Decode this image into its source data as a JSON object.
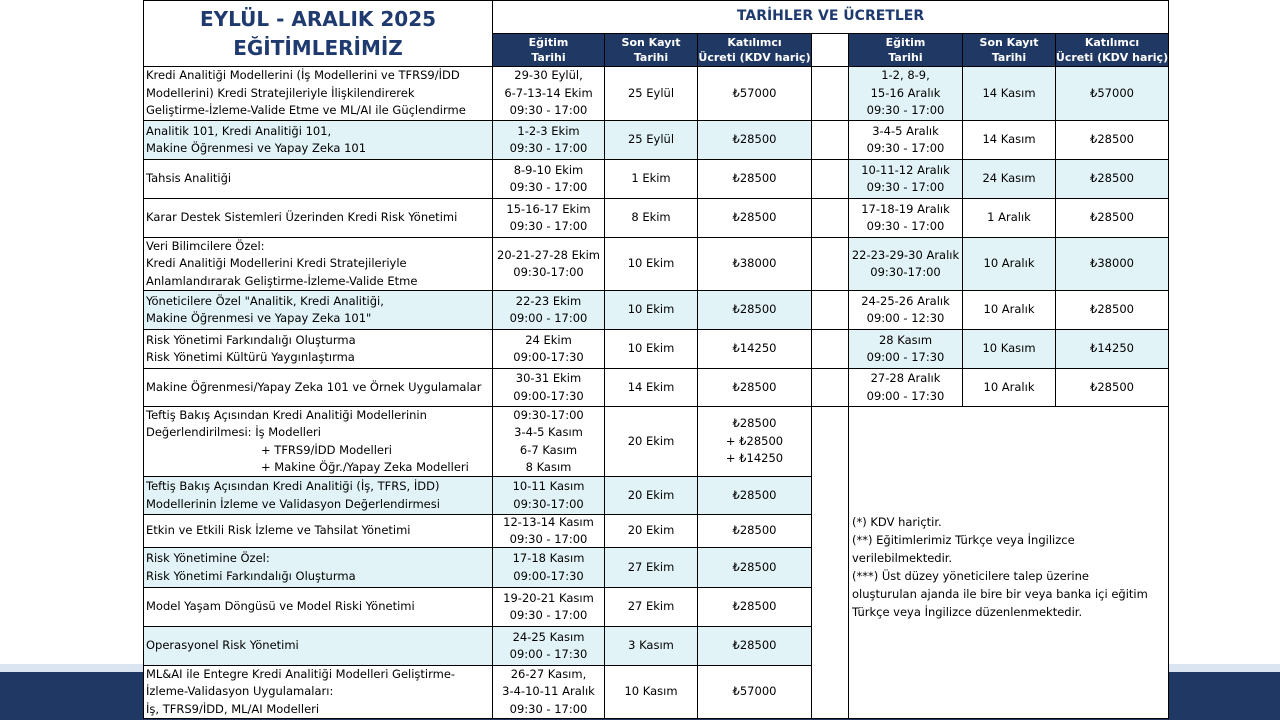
{
  "header": {
    "title": [
      "EYLÜL - ARALIK 2025",
      "EĞİTİMLERİMİZ"
    ],
    "subtitle": "TARİHLER VE ÜCRETLER",
    "columns": [
      [
        "Eğitim",
        "Tarihi"
      ],
      [
        "Son Kayıt",
        "Tarihi"
      ],
      [
        "Katılımcı",
        "Ücreti (KDV hariç)"
      ]
    ]
  },
  "rows": [
    {
      "course": [
        "Kredi Analitiği Modellerini (İş Modellerini ve TFRS9/İDD",
        "Modellerini) Kredi Stratejileriyle İlişkilendirerek",
        "Geliştirme-İzleme-Valide Etme ve ML/AI ile Güçlendirme"
      ],
      "session1": {
        "dates": [
          "29-30 Eylül,",
          "6-7-13-14 Ekim",
          "09:30 - 17:00"
        ],
        "last": "25 Eylül",
        "fee": [
          "₺57000"
        ]
      },
      "session2": {
        "dates": [
          "1-2, 8-9,",
          "15-16 Aralık",
          "09:30 - 17:00"
        ],
        "last": "14 Kasım",
        "fee": [
          "₺57000"
        ]
      }
    },
    {
      "course": [
        "Analitik 101, Kredi Analitiği 101,",
        "Makine Öğrenmesi ve Yapay Zeka 101"
      ],
      "session1": {
        "dates": [
          "1-2-3 Ekim",
          "09:30 - 17:00"
        ],
        "last": "25 Eylül",
        "fee": [
          "₺28500"
        ]
      },
      "session2": {
        "dates": [
          "3-4-5 Aralık",
          "09:30 - 17:00"
        ],
        "last": "14 Kasım",
        "fee": [
          "₺28500"
        ]
      }
    },
    {
      "course": [
        "Tahsis Analitiği"
      ],
      "session1": {
        "dates": [
          "8-9-10 Ekim",
          "09:30 - 17:00"
        ],
        "last": "1 Ekim",
        "fee": [
          "₺28500"
        ]
      },
      "session2": {
        "dates": [
          "10-11-12 Aralık",
          "09:30 - 17:00"
        ],
        "last": "24 Kasım",
        "fee": [
          "₺28500"
        ]
      }
    },
    {
      "course": [
        "Karar Destek Sistemleri Üzerinden Kredi Risk Yönetimi"
      ],
      "session1": {
        "dates": [
          "15-16-17 Ekim",
          "09:30 - 17:00"
        ],
        "last": "8 Ekim",
        "fee": [
          "₺28500"
        ]
      },
      "session2": {
        "dates": [
          "17-18-19 Aralık",
          "09:30 - 17:00"
        ],
        "last": "1 Aralık",
        "fee": [
          "₺28500"
        ]
      }
    },
    {
      "course": [
        "Veri Bilimcilere Özel:",
        "Kredi Analitiği Modellerini Kredi Stratejileriyle",
        "Anlamlandırarak Geliştirme-İzleme-Valide Etme"
      ],
      "session1": {
        "dates": [
          "20-21-27-28 Ekim",
          "09:30-17:00"
        ],
        "last": "10 Ekim",
        "fee": [
          "₺38000"
        ]
      },
      "session2": {
        "dates": [
          "22-23-29-30 Aralık",
          "09:30-17:00"
        ],
        "last": "10 Aralık",
        "fee": [
          "₺38000"
        ]
      }
    },
    {
      "course": [
        "Yöneticilere Özel \"Analitik, Kredi Analitiği,",
        "Makine Öğrenmesi ve Yapay Zeka 101\""
      ],
      "session1": {
        "dates": [
          "22-23 Ekim",
          "09:00 - 17:00"
        ],
        "last": "10 Ekim",
        "fee": [
          "₺28500"
        ]
      },
      "session2": {
        "dates": [
          "24-25-26 Aralık",
          "09:00 - 12:30"
        ],
        "last": "10 Aralık",
        "fee": [
          "₺28500"
        ]
      }
    },
    {
      "course": [
        "Risk Yönetimi Farkındalığı Oluşturma",
        "Risk Yönetimi Kültürü Yaygınlaştırma"
      ],
      "session1": {
        "dates": [
          "24 Ekim",
          "09:00-17:30"
        ],
        "last": "10 Ekim",
        "fee": [
          "₺14250"
        ]
      },
      "session2": {
        "dates": [
          "28 Kasım",
          "09:00 - 17:30"
        ],
        "last": "10 Kasım",
        "fee": [
          "₺14250"
        ]
      }
    },
    {
      "course": [
        "Makine Öğrenmesi/Yapay Zeka 101 ve Örnek Uygulamalar"
      ],
      "session1": {
        "dates": [
          "30-31 Ekim",
          "09:00-17:30"
        ],
        "last": "14 Ekim",
        "fee": [
          "₺28500"
        ]
      },
      "session2": {
        "dates": [
          "27-28 Aralık",
          "09:00 - 17:30"
        ],
        "last": "10 Aralık",
        "fee": [
          "₺28500"
        ]
      }
    },
    {
      "course": [
        "Teftiş Bakış Açısından Kredi Analitiği Modellerinin",
        "Değerlendirilmesi:  İş Modelleri",
        "+ TFRS9/İDD Modelleri",
        "+ Makine Öğr./Yapay Zeka Modelleri"
      ],
      "session1": {
        "dates": [
          "09:30-17:00",
          "3-4-5 Kasım",
          "6-7 Kasım",
          "8 Kasım"
        ],
        "last": "20 Ekim",
        "fee": [
          "₺28500",
          "+ ₺28500",
          "+ ₺14250"
        ]
      }
    },
    {
      "course": [
        "Teftiş Bakış Açısından Kredi Analitiği (İş, TFRS, İDD)",
        "Modellerinin İzleme ve Validasyon Değerlendirmesi"
      ],
      "session1": {
        "dates": [
          "10-11 Kasım",
          "09:30-17:00"
        ],
        "last": "20 Ekim",
        "fee": [
          "₺28500"
        ]
      }
    },
    {
      "course": [
        "Etkin ve Etkili Risk İzleme ve Tahsilat Yönetimi"
      ],
      "session1": {
        "dates": [
          "12-13-14 Kasım",
          "09:30 - 17:00"
        ],
        "last": "20 Ekim",
        "fee": [
          "₺28500"
        ]
      }
    },
    {
      "course": [
        "Risk Yönetimine Özel:",
        "Risk Yönetimi Farkındalığı Oluşturma"
      ],
      "session1": {
        "dates": [
          "17-18 Kasım",
          "09:00-17:30"
        ],
        "last": "27 Ekim",
        "fee": [
          "₺28500"
        ]
      }
    },
    {
      "course": [
        "Model Yaşam Döngüsü ve Model Riski Yönetimi"
      ],
      "session1": {
        "dates": [
          "19-20-21 Kasım",
          "09:30 - 17:00"
        ],
        "last": "27 Ekim",
        "fee": [
          "₺28500"
        ]
      }
    },
    {
      "course": [
        "Operasyonel Risk Yönetimi"
      ],
      "session1": {
        "dates": [
          "24-25 Kasım",
          "09:00 - 17:30"
        ],
        "last": "3 Kasım",
        "fee": [
          "₺28500"
        ]
      }
    },
    {
      "course": [
        "ML&AI ile Entegre Kredi Analitiği Modelleri Geliştirme-",
        "İzleme-Validasyon Uygulamaları:",
        "İş, TFRS9/İDD, ML/AI Modelleri"
      ],
      "session1": {
        "dates": [
          "26-27 Kasım,",
          "3-4-10-11 Aralık",
          "09:30 - 17:00"
        ],
        "last": "10 Kasım",
        "fee": [
          "₺57000"
        ]
      }
    }
  ],
  "notes": [
    "(*) KDV hariçtir.",
    "(**) Eğitimlerimiz Türkçe veya İngilizce",
    "verilebilmektedir.",
    "(***) Üst düzey yöneticilere talep üzerine",
    "oluşturulan ajanda ile bire bir veya banka içi eğitim",
    "Türkçe veya İngilizce düzenlenmektedir."
  ]
}
